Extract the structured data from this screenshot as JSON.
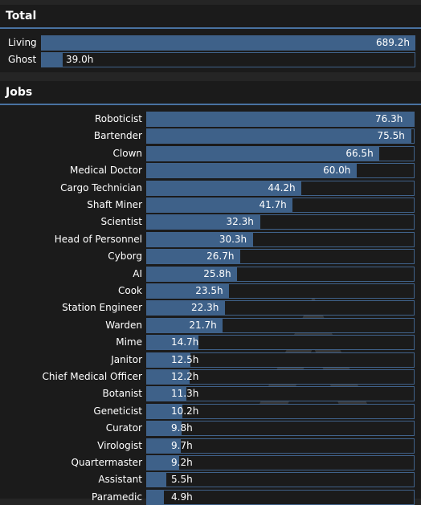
{
  "total": {
    "title": "Total",
    "rows": [
      {
        "label": "Living",
        "value": "689.2h",
        "hours": 689.2
      },
      {
        "label": "Ghost",
        "value": "39.0h",
        "hours": 39.0
      }
    ]
  },
  "jobs": {
    "title": "Jobs",
    "rows": [
      {
        "label": "Roboticist",
        "value": "76.3h",
        "hours": 76.3
      },
      {
        "label": "Bartender",
        "value": "75.5h",
        "hours": 75.5
      },
      {
        "label": "Clown",
        "value": "66.5h",
        "hours": 66.5
      },
      {
        "label": "Medical Doctor",
        "value": "60.0h",
        "hours": 60.0
      },
      {
        "label": "Cargo Technician",
        "value": "44.2h",
        "hours": 44.2
      },
      {
        "label": "Shaft Miner",
        "value": "41.7h",
        "hours": 41.7
      },
      {
        "label": "Scientist",
        "value": "32.3h",
        "hours": 32.3
      },
      {
        "label": "Head of Personnel",
        "value": "30.3h",
        "hours": 30.3
      },
      {
        "label": "Cyborg",
        "value": "26.7h",
        "hours": 26.7
      },
      {
        "label": "AI",
        "value": "25.8h",
        "hours": 25.8
      },
      {
        "label": "Cook",
        "value": "23.5h",
        "hours": 23.5
      },
      {
        "label": "Station Engineer",
        "value": "22.3h",
        "hours": 22.3
      },
      {
        "label": "Warden",
        "value": "21.7h",
        "hours": 21.7
      },
      {
        "label": "Mime",
        "value": "14.7h",
        "hours": 14.7
      },
      {
        "label": "Janitor",
        "value": "12.5h",
        "hours": 12.5
      },
      {
        "label": "Chief Medical Officer",
        "value": "12.2h",
        "hours": 12.2
      },
      {
        "label": "Botanist",
        "value": "11.3h",
        "hours": 11.3
      },
      {
        "label": "Geneticist",
        "value": "10.2h",
        "hours": 10.2
      },
      {
        "label": "Curator",
        "value": "9.8h",
        "hours": 9.8
      },
      {
        "label": "Virologist",
        "value": "9.7h",
        "hours": 9.7
      },
      {
        "label": "Quartermaster",
        "value": "9.2h",
        "hours": 9.2
      },
      {
        "label": "Assistant",
        "value": "5.5h",
        "hours": 5.5
      },
      {
        "label": "Paramedic",
        "value": "4.9h",
        "hours": 4.9
      }
    ]
  },
  "colors": {
    "accent": "#4972a1",
    "bar_fill": "#3e6189",
    "background": "#1b1b1b"
  }
}
